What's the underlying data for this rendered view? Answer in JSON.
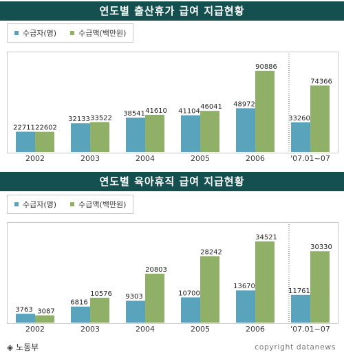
{
  "colors": {
    "series1": "#5aa3bd",
    "series2": "#8fb066",
    "title_bg": "#14504f"
  },
  "legend": {
    "series1": "수급자(명)",
    "series2": "수급액(백만원)"
  },
  "footer": {
    "source": "노동부",
    "copyright": "copyright datanews"
  },
  "chart_data": [
    {
      "type": "bar",
      "title": "연도별 출산휴가 급여 지급현황",
      "categories": [
        "2002",
        "2003",
        "2004",
        "2005",
        "2006",
        "'07.01~07"
      ],
      "series": [
        {
          "name": "수급자(명)",
          "values": [
            22711,
            32133,
            38541,
            41104,
            48972,
            33260
          ]
        },
        {
          "name": "수급액(백만원)",
          "values": [
            22602,
            33522,
            41610,
            46041,
            90886,
            74366
          ]
        }
      ],
      "ylim": [
        0,
        100000
      ],
      "grid": false,
      "legend_position": "top-left"
    },
    {
      "type": "bar",
      "title": "연도별 육아휴직 급여 지급현황",
      "categories": [
        "2002",
        "2003",
        "2004",
        "2005",
        "2006",
        "'07.01~07"
      ],
      "series": [
        {
          "name": "수급자(명)",
          "values": [
            3763,
            6816,
            9303,
            10700,
            13670,
            11761
          ]
        },
        {
          "name": "수급액(백만원)",
          "values": [
            3087,
            10576,
            20803,
            28242,
            34521,
            30330
          ]
        }
      ],
      "ylim": [
        0,
        38000
      ],
      "grid": false,
      "legend_position": "top-left"
    }
  ]
}
